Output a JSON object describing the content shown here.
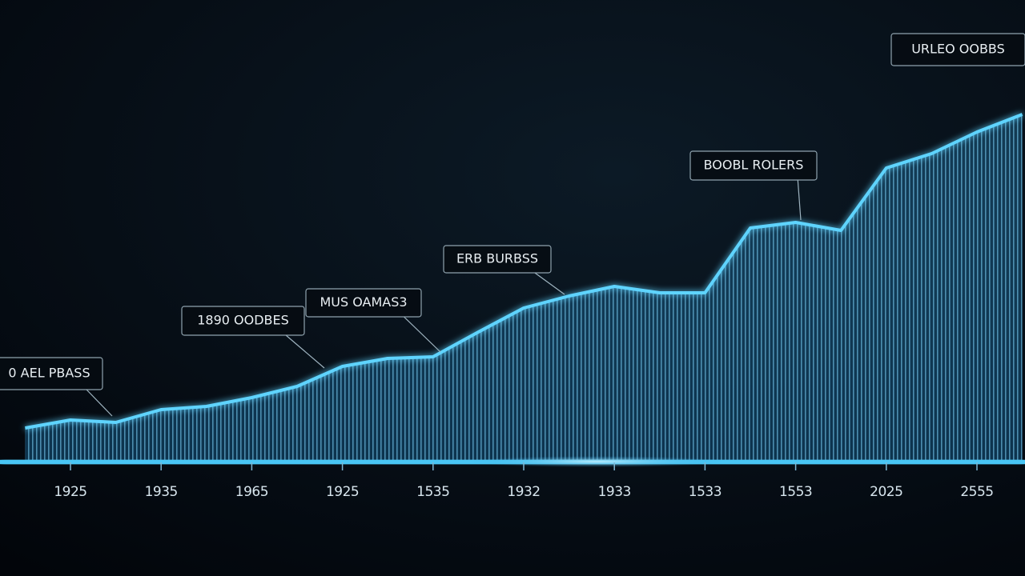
{
  "chart_data": {
    "type": "area",
    "categories": [
      null,
      "1925",
      null,
      "1935",
      null,
      "1965",
      null,
      "1925",
      null,
      "1535",
      null,
      "1932",
      null,
      "1933",
      null,
      "1533",
      null,
      "1553",
      null,
      "2025",
      null,
      "2555",
      null
    ],
    "values": [
      43,
      53,
      50,
      66,
      70,
      81,
      95,
      120,
      130,
      132,
      163,
      193,
      208,
      220,
      212,
      212,
      293,
      300,
      290,
      368,
      386,
      413,
      435
    ],
    "ylim": [
      0,
      500
    ],
    "color": "#5fd4ff",
    "annotations": [
      "0 AEL PBASS",
      "1890 OODBES",
      "MUS OAMAS3",
      "ERB BURBSS",
      "BOOBL ROLERS",
      "URLEO OOBBS"
    ]
  }
}
